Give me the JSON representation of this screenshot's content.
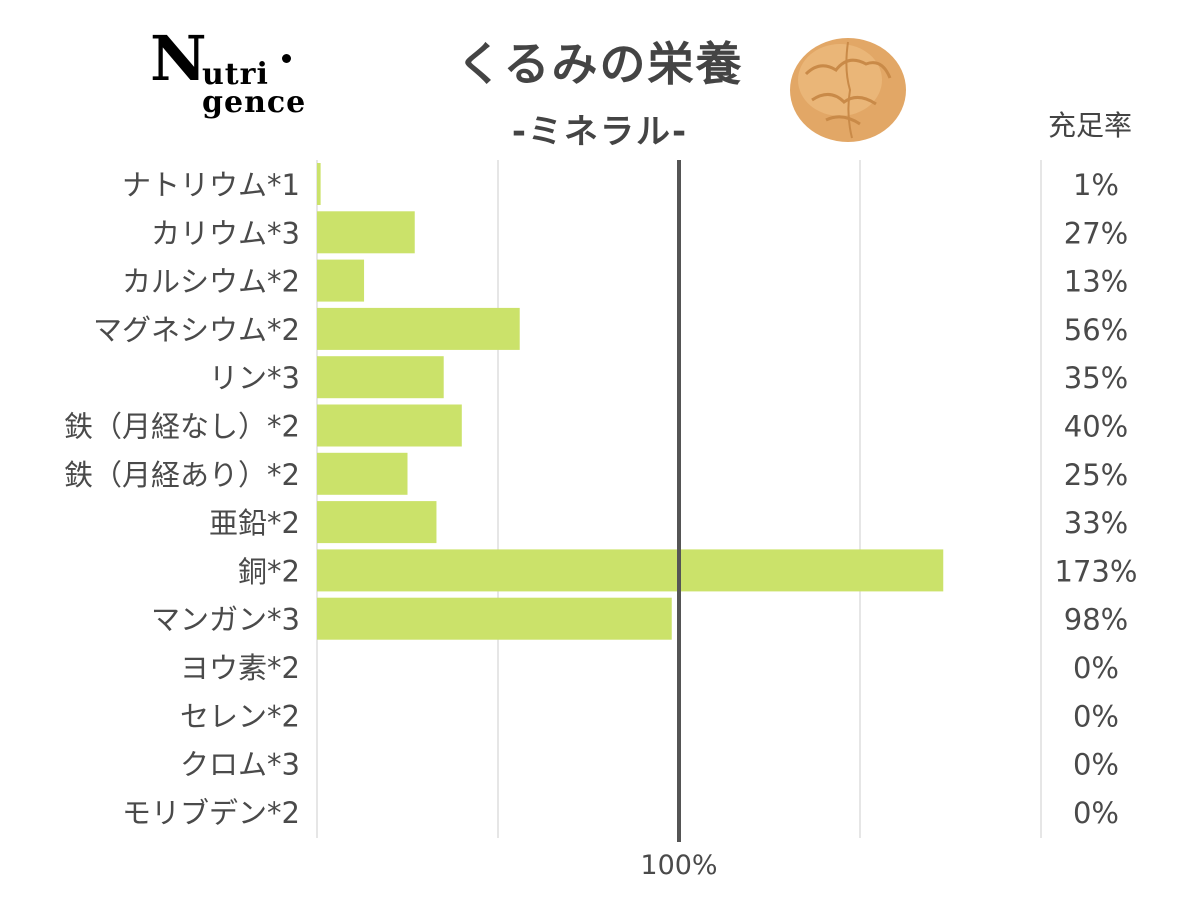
{
  "logo": {
    "initial": "N",
    "line1": "utri",
    "line2": "gence"
  },
  "title": "くるみの栄養",
  "subtitle": "-ミネラル-",
  "column_header": "充足率",
  "colors": {
    "bar": "#cbe26a",
    "reference_line": "#555555",
    "grid": "#dddddd",
    "text": "#4a4a4a"
  },
  "icons": [
    "walnut-icon"
  ],
  "chart_data": {
    "type": "bar",
    "orientation": "horizontal",
    "categories": [
      "ナトリウム*1",
      "カリウム*3",
      "カルシウム*2",
      "マグネシウム*2",
      "リン*3",
      "鉄（月経なし）*2",
      "鉄（月経あり）*2",
      "亜鉛*2",
      "銅*2",
      "マンガン*3",
      "ヨウ素*2",
      "セレン*2",
      "クロム*3",
      "モリブデン*2"
    ],
    "values": [
      1,
      27,
      13,
      56,
      35,
      40,
      25,
      33,
      173,
      98,
      0,
      0,
      0,
      0
    ],
    "value_labels": [
      "1%",
      "27%",
      "13%",
      "56%",
      "35%",
      "40%",
      "25%",
      "33%",
      "173%",
      "98%",
      "0%",
      "0%",
      "0%",
      "0%"
    ],
    "xlim": [
      0,
      200
    ],
    "reference_line": {
      "value": 100,
      "label": "100%"
    },
    "grid": true,
    "legend": "none"
  }
}
